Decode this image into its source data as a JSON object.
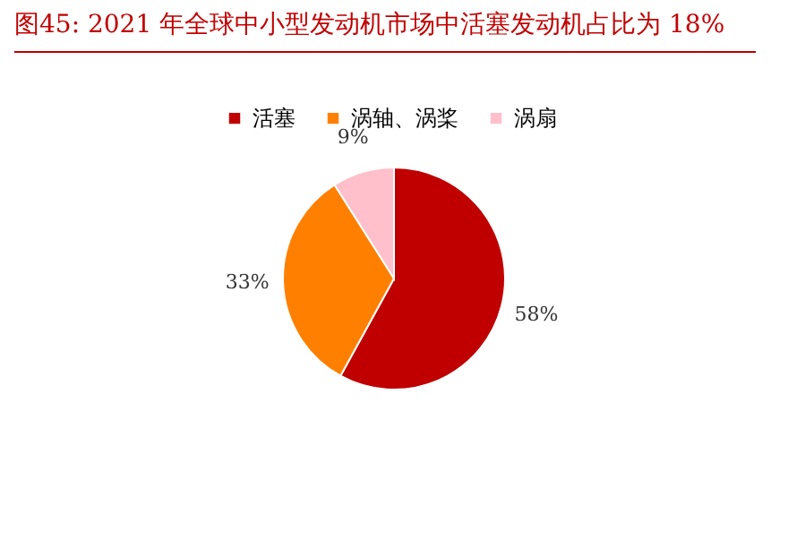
{
  "chart_data": {
    "type": "pie",
    "title": "图45:    2021 年全球中小型发动机市场中活塞发动机占比为 18%",
    "categories": [
      "活塞",
      "涡轴、涡桨",
      "涡扇"
    ],
    "values": [
      58,
      33,
      9
    ],
    "colors": [
      "#c00000",
      "#ff8000",
      "#ffc0cb"
    ],
    "value_labels": [
      "58%",
      "33%",
      "9%"
    ],
    "legend": "top"
  }
}
